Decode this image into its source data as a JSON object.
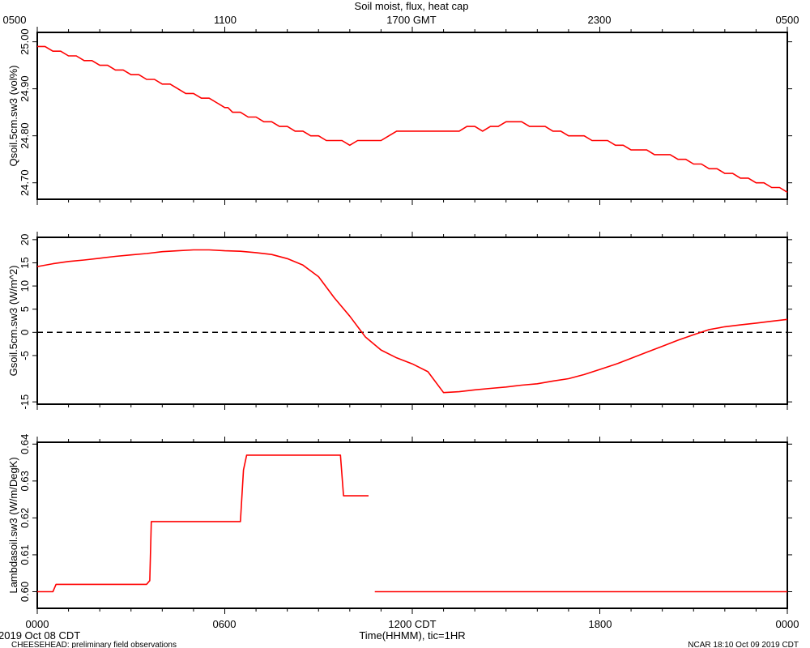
{
  "title": "Soil moist, flux, heat cap",
  "top_axis_labels": [
    "0500",
    "1100",
    "1700 GMT",
    "2300",
    "0500"
  ],
  "bottom_axis_labels": [
    "0000",
    "0600",
    "1200 CDT",
    "1800",
    "0000"
  ],
  "bottom_xlabel": "Time(HHMM), tic=1HR",
  "start_date": "2019 Oct 08 CDT",
  "footer_left": "CHEESEHEAD: preliminary field observations",
  "footer_right": "NCAR 18:10 Oct 09 2019 CDT",
  "colors": {
    "series": "#ff0000",
    "axes": "#000000",
    "zero_line": "#000000"
  },
  "chart_data": [
    {
      "type": "line",
      "ylabel": "Qsoil.5cm.sw3 (vol%)",
      "xlim": [
        0,
        24
      ],
      "ylim": [
        24.665,
        25.02
      ],
      "yticks": [
        24.7,
        24.8,
        24.9,
        25.0
      ],
      "ytick_labels": [
        "24.70",
        "24.80",
        "24.90",
        "25.00"
      ],
      "grid": false,
      "x": [
        0,
        0.25,
        0.5,
        0.75,
        1.0,
        1.25,
        1.5,
        1.75,
        2.0,
        2.25,
        2.5,
        2.75,
        3.0,
        3.25,
        3.5,
        3.75,
        4.0,
        4.25,
        4.5,
        4.75,
        5.0,
        5.25,
        5.5,
        5.75,
        6.0,
        6.1,
        6.25,
        6.5,
        6.75,
        7.0,
        7.25,
        7.5,
        7.75,
        8.0,
        8.25,
        8.5,
        8.75,
        9.0,
        9.25,
        9.5,
        9.75,
        10.0,
        10.25,
        10.5,
        10.75,
        11.0,
        11.25,
        11.5,
        11.75,
        12.0,
        12.25,
        12.5,
        12.75,
        13.0,
        13.25,
        13.5,
        13.75,
        14.0,
        14.25,
        14.5,
        14.75,
        15.0,
        15.25,
        15.5,
        15.75,
        16.0,
        16.25,
        16.5,
        16.75,
        17.0,
        17.25,
        17.5,
        17.75,
        18.0,
        18.25,
        18.5,
        18.75,
        19.0,
        19.25,
        19.5,
        19.75,
        20.0,
        20.25,
        20.5,
        20.75,
        21.0,
        21.25,
        21.5,
        21.75,
        22.0,
        22.25,
        22.5,
        22.75,
        23.0,
        23.25,
        23.5,
        23.75,
        24.0
      ],
      "y": [
        24.99,
        24.99,
        24.98,
        24.98,
        24.97,
        24.97,
        24.96,
        24.96,
        24.95,
        24.95,
        24.94,
        24.94,
        24.93,
        24.93,
        24.92,
        24.92,
        24.91,
        24.91,
        24.9,
        24.89,
        24.89,
        24.88,
        24.88,
        24.87,
        24.86,
        24.86,
        24.85,
        24.85,
        24.84,
        24.84,
        24.83,
        24.83,
        24.82,
        24.82,
        24.81,
        24.81,
        24.8,
        24.8,
        24.79,
        24.79,
        24.79,
        24.78,
        24.79,
        24.79,
        24.79,
        24.79,
        24.8,
        24.81,
        24.81,
        24.81,
        24.81,
        24.81,
        24.81,
        24.81,
        24.81,
        24.81,
        24.82,
        24.82,
        24.81,
        24.82,
        24.82,
        24.83,
        24.83,
        24.83,
        24.82,
        24.82,
        24.82,
        24.81,
        24.81,
        24.8,
        24.8,
        24.8,
        24.79,
        24.79,
        24.79,
        24.78,
        24.78,
        24.77,
        24.77,
        24.77,
        24.76,
        24.76,
        24.76,
        24.75,
        24.75,
        24.74,
        24.74,
        24.73,
        24.73,
        24.72,
        24.72,
        24.71,
        24.71,
        24.7,
        24.7,
        24.69,
        24.69,
        24.68
      ]
    },
    {
      "type": "line",
      "ylabel": "Gsoil.5cm.sw3 (W/m^2)",
      "xlim": [
        0,
        24
      ],
      "ylim": [
        -15.5,
        20.5
      ],
      "yticks": [
        -15,
        -5,
        0,
        5,
        10,
        15,
        20
      ],
      "ytick_labels": [
        "-15",
        "-5",
        "0",
        "5",
        "10",
        "15",
        "20"
      ],
      "zero_line": 0,
      "grid": false,
      "x": [
        0,
        0.5,
        1.0,
        1.5,
        2.0,
        2.5,
        3.0,
        3.5,
        4.0,
        4.5,
        5.0,
        5.5,
        6.0,
        6.5,
        7.0,
        7.5,
        8.0,
        8.5,
        9.0,
        9.5,
        10.0,
        10.5,
        11.0,
        11.5,
        12.0,
        12.5,
        13.0,
        13.5,
        14.0,
        14.5,
        15.0,
        15.5,
        16.0,
        16.5,
        17.0,
        17.5,
        18.0,
        18.5,
        19.0,
        19.5,
        20.0,
        20.5,
        21.0,
        21.5,
        22.0,
        22.5,
        23.0,
        23.5,
        24.0
      ],
      "y": [
        14.2,
        14.8,
        15.3,
        15.6,
        16.0,
        16.4,
        16.7,
        17.0,
        17.4,
        17.6,
        17.8,
        17.8,
        17.6,
        17.5,
        17.2,
        16.8,
        15.9,
        14.5,
        12.0,
        7.5,
        3.5,
        -1.0,
        -3.8,
        -5.5,
        -6.8,
        -8.5,
        -13.0,
        -12.8,
        -12.4,
        -12.1,
        -11.8,
        -11.4,
        -11.1,
        -10.5,
        -10.0,
        -9.1,
        -8.0,
        -6.9,
        -5.6,
        -4.3,
        -3.0,
        -1.7,
        -0.5,
        0.6,
        1.2,
        1.6,
        2.0,
        2.4,
        2.8
      ]
    },
    {
      "type": "line",
      "ylabel": "Lambdasoil.sw3 (W/m/DegK)",
      "xlim": [
        0,
        24
      ],
      "ylim": [
        0.5955,
        0.6405
      ],
      "yticks": [
        0.6,
        0.61,
        0.62,
        0.63,
        0.64
      ],
      "ytick_labels": [
        "0.60",
        "0.61",
        "0.62",
        "0.63",
        "0.64"
      ],
      "grid": false,
      "segments": [
        {
          "x": [
            0.0,
            0.5,
            0.6,
            3.5,
            3.6,
            3.65,
            6.5,
            6.6,
            6.7,
            9.7,
            9.8,
            10.6
          ],
          "y": [
            0.6,
            0.6,
            0.602,
            0.602,
            0.603,
            0.619,
            0.619,
            0.633,
            0.637,
            0.637,
            0.626,
            0.626
          ]
        },
        {
          "x": [
            10.8,
            24.0
          ],
          "y": [
            0.6,
            0.6
          ]
        }
      ]
    }
  ]
}
